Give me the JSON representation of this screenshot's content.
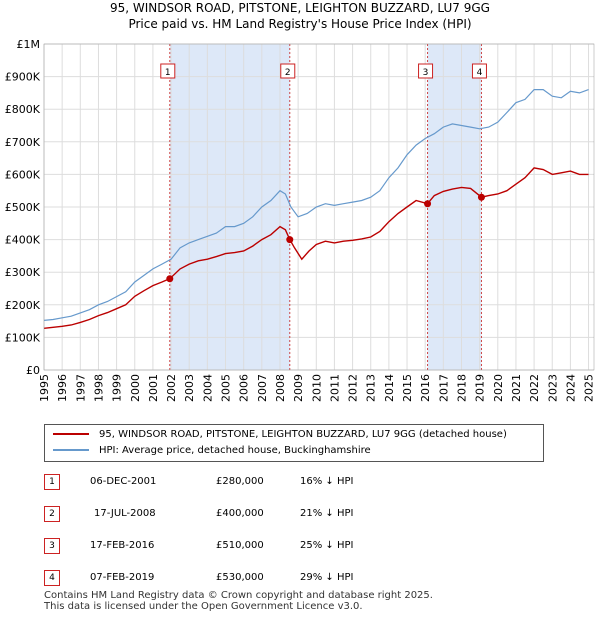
{
  "title_line1": "95, WINDSOR ROAD, PITSTONE, LEIGHTON BUZZARD, LU7 9GG",
  "title_line2": "Price paid vs. HM Land Registry's House Price Index (HPI)",
  "colors": {
    "hpi": "#6699cc",
    "price": "#bb0000",
    "band": "#dde8f8",
    "marker_border": "#cc2222",
    "grid": "#dddddd"
  },
  "legend": {
    "price_label": "95, WINDSOR ROAD, PITSTONE, LEIGHTON BUZZARD, LU7 9GG (detached house)",
    "hpi_label": "HPI: Average price, detached house, Buckinghamshire"
  },
  "sales": [
    {
      "num": "1",
      "date": "06-DEC-2001",
      "price": "£280,000",
      "delta": "16% ↓ HPI"
    },
    {
      "num": "2",
      "date": "17-JUL-2008",
      "price": "£400,000",
      "delta": "21% ↓ HPI"
    },
    {
      "num": "3",
      "date": "17-FEB-2016",
      "price": "£510,000",
      "delta": "25% ↓ HPI"
    },
    {
      "num": "4",
      "date": "07-FEB-2019",
      "price": "£530,000",
      "delta": "29% ↓ HPI"
    }
  ],
  "footer_line1": "Contains HM Land Registry data © Crown copyright and database right 2025.",
  "footer_line2": "This data is licensed under the Open Government Licence v3.0.",
  "chart_data": {
    "type": "line",
    "title": "Price paid vs. HM Land Registry's House Price Index (HPI)",
    "xlim": [
      1995,
      2025.3
    ],
    "ylim": [
      0,
      1000000
    ],
    "y_ticks": [
      0,
      100000,
      200000,
      300000,
      400000,
      500000,
      600000,
      700000,
      800000,
      900000,
      1000000
    ],
    "y_tick_labels": [
      "£0",
      "£100K",
      "£200K",
      "£300K",
      "£400K",
      "£500K",
      "£600K",
      "£700K",
      "£800K",
      "£900K",
      "£1M"
    ],
    "x_ticks": [
      1995,
      1996,
      1997,
      1998,
      1999,
      2000,
      2001,
      2002,
      2003,
      2004,
      2005,
      2006,
      2007,
      2008,
      2009,
      2010,
      2011,
      2012,
      2013,
      2014,
      2015,
      2016,
      2017,
      2018,
      2019,
      2020,
      2021,
      2022,
      2023,
      2024,
      2025
    ],
    "grid": true,
    "sale_markers": [
      {
        "num": "1",
        "x": 2001.93,
        "y": 280000
      },
      {
        "num": "2",
        "x": 2008.54,
        "y": 400000
      },
      {
        "num": "3",
        "x": 2016.13,
        "y": 510000
      },
      {
        "num": "4",
        "x": 2019.1,
        "y": 530000
      }
    ],
    "highlight_bands": [
      [
        2001.93,
        2008.54
      ],
      [
        2016.13,
        2019.1
      ]
    ],
    "series": [
      {
        "name": "HPI: Average price, detached house, Buckinghamshire",
        "x": [
          1995.0,
          1995.5,
          1996.0,
          1996.5,
          1997.0,
          1997.5,
          1998.0,
          1998.5,
          1999.0,
          1999.5,
          2000.0,
          2000.5,
          2001.0,
          2001.5,
          2002.0,
          2002.5,
          2003.0,
          2003.5,
          2004.0,
          2004.5,
          2005.0,
          2005.5,
          2006.0,
          2006.5,
          2007.0,
          2007.5,
          2008.0,
          2008.3,
          2008.6,
          2009.0,
          2009.5,
          2010.0,
          2010.5,
          2011.0,
          2011.5,
          2012.0,
          2012.5,
          2013.0,
          2013.5,
          2014.0,
          2014.5,
          2015.0,
          2015.5,
          2016.0,
          2016.5,
          2017.0,
          2017.5,
          2018.0,
          2018.5,
          2019.0,
          2019.5,
          2020.0,
          2020.5,
          2021.0,
          2021.5,
          2022.0,
          2022.5,
          2023.0,
          2023.5,
          2024.0,
          2024.5,
          2025.0
        ],
        "y": [
          152000,
          155000,
          160000,
          165000,
          175000,
          185000,
          200000,
          210000,
          225000,
          240000,
          270000,
          290000,
          310000,
          325000,
          340000,
          375000,
          390000,
          400000,
          410000,
          420000,
          440000,
          440000,
          450000,
          470000,
          500000,
          520000,
          550000,
          540000,
          500000,
          470000,
          480000,
          500000,
          510000,
          505000,
          510000,
          515000,
          520000,
          530000,
          550000,
          590000,
          620000,
          660000,
          690000,
          710000,
          725000,
          745000,
          755000,
          750000,
          745000,
          740000,
          745000,
          760000,
          790000,
          820000,
          830000,
          860000,
          860000,
          840000,
          835000,
          855000,
          850000,
          860000
        ]
      },
      {
        "name": "95, WINDSOR ROAD, PITSTONE, LEIGHTON BUZZARD, LU7 9GG (detached house)",
        "x": [
          1995.0,
          1995.5,
          1996.0,
          1996.5,
          1997.0,
          1997.5,
          1998.0,
          1998.5,
          1999.0,
          1999.5,
          2000.0,
          2000.5,
          2001.0,
          2001.5,
          2001.93,
          2002.5,
          2003.0,
          2003.5,
          2004.0,
          2004.5,
          2005.0,
          2005.5,
          2006.0,
          2006.5,
          2007.0,
          2007.5,
          2008.0,
          2008.3,
          2008.54,
          2008.8,
          2009.2,
          2009.6,
          2010.0,
          2010.5,
          2011.0,
          2011.5,
          2012.0,
          2012.5,
          2013.0,
          2013.5,
          2014.0,
          2014.5,
          2015.0,
          2015.5,
          2016.13,
          2016.5,
          2017.0,
          2017.5,
          2018.0,
          2018.5,
          2019.1,
          2019.5,
          2020.0,
          2020.5,
          2021.0,
          2021.5,
          2022.0,
          2022.5,
          2023.0,
          2023.5,
          2024.0,
          2024.5,
          2025.0
        ],
        "y": [
          128000,
          131000,
          134000,
          138000,
          146000,
          155000,
          167000,
          176000,
          188000,
          200000,
          226000,
          243000,
          259000,
          270000,
          280000,
          310000,
          325000,
          335000,
          340000,
          348000,
          357000,
          360000,
          365000,
          380000,
          400000,
          415000,
          440000,
          430000,
          400000,
          375000,
          340000,
          365000,
          385000,
          395000,
          390000,
          395000,
          398000,
          402000,
          408000,
          425000,
          455000,
          480000,
          500000,
          520000,
          510000,
          535000,
          548000,
          555000,
          560000,
          557000,
          530000,
          535000,
          540000,
          550000,
          570000,
          590000,
          620000,
          615000,
          600000,
          605000,
          610000,
          600000,
          600000
        ]
      }
    ]
  }
}
